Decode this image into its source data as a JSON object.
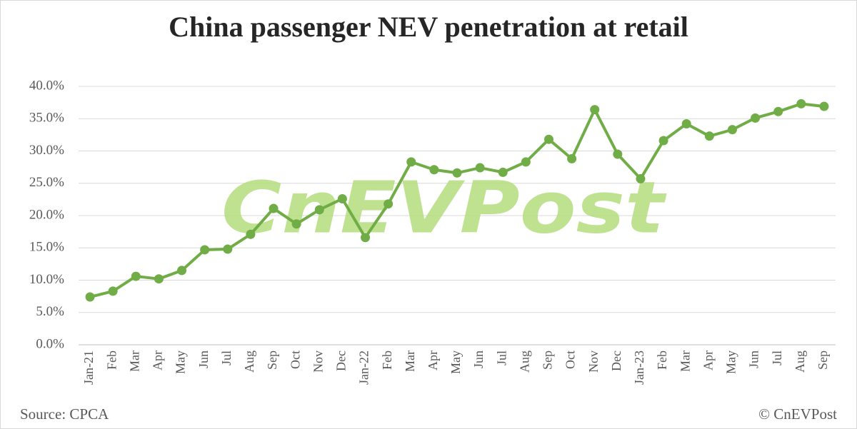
{
  "chart_data": {
    "type": "line",
    "title": "China passenger NEV penetration at retail",
    "categories": [
      "Jan-21",
      "Feb",
      "Mar",
      "Apr",
      "May",
      "Jun",
      "Jul",
      "Aug",
      "Sep",
      "Oct",
      "Nov",
      "Dec",
      "Jan-22",
      "Feb",
      "Mar",
      "Apr",
      "May",
      "Jun",
      "Jul",
      "Aug",
      "Sep",
      "Oct",
      "Nov",
      "Dec",
      "Jan-23",
      "Feb",
      "Mar",
      "Apr",
      "May",
      "Jun",
      "Jul",
      "Aug",
      "Sep"
    ],
    "series": [
      {
        "name": "NEV penetration",
        "color": "#70ad47",
        "values": [
          7.4,
          8.3,
          10.6,
          10.2,
          11.5,
          14.7,
          14.8,
          17.1,
          21.1,
          18.7,
          20.9,
          22.6,
          16.6,
          21.8,
          28.3,
          27.1,
          26.6,
          27.4,
          26.7,
          28.3,
          31.8,
          28.8,
          36.4,
          29.5,
          25.7,
          31.6,
          34.2,
          32.3,
          33.3,
          35.1,
          36.1,
          37.3,
          36.9
        ]
      }
    ],
    "ylim": [
      0,
      40
    ],
    "yticks": [
      {
        "value": 0,
        "label": "0.0%"
      },
      {
        "value": 5,
        "label": "5.0%"
      },
      {
        "value": 10,
        "label": "10.0%"
      },
      {
        "value": 15,
        "label": "15.0%"
      },
      {
        "value": 20,
        "label": "20.0%"
      },
      {
        "value": 25,
        "label": "25.0%"
      },
      {
        "value": 30,
        "label": "30.0%"
      },
      {
        "value": 35,
        "label": "35.0%"
      },
      {
        "value": 40,
        "label": "40.0%"
      }
    ],
    "grid": true,
    "watermark": "CnEVPost",
    "source": "Source: CPCA",
    "credit": "© CnEVPost"
  }
}
